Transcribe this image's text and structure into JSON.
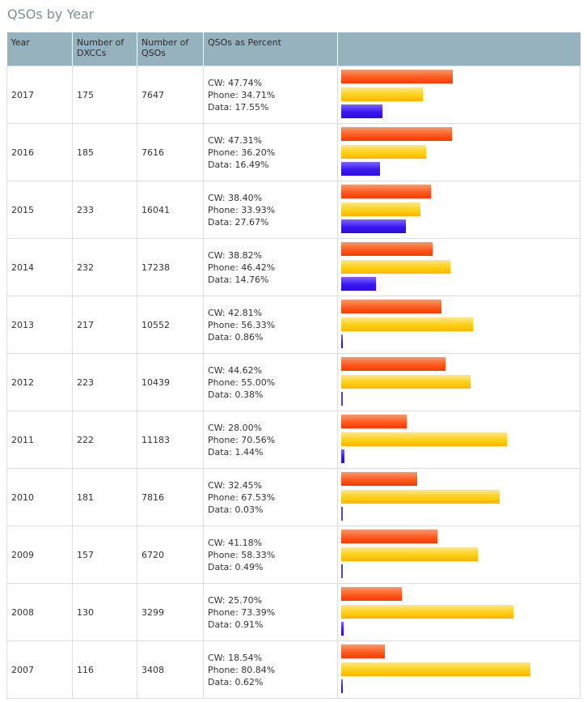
{
  "page": {
    "title": "QSOs by Year",
    "columns": [
      "Year",
      "Number of DXCCs",
      "Number of QSOs",
      "QSOs as Percent"
    ],
    "colors": {
      "cw": "#ff5a1e",
      "phone": "#ffd21a",
      "data": "#3a18f2",
      "header_bg": "#97b2bf"
    }
  },
  "chart_data": {
    "type": "table",
    "title": "QSOs by Year",
    "columns": [
      "Year",
      "Number of DXCCs",
      "Number of QSOs",
      "QSOs as Percent"
    ],
    "bar_series": [
      "CW",
      "Phone",
      "Data"
    ],
    "bar_max_percent": 100,
    "rows": [
      {
        "year": "2017",
        "dxccs": "175",
        "qsos": "7647",
        "cw_label": "CW: 47.74%",
        "phone_label": "Phone: 34.71%",
        "data_label": "Data: 17.55%",
        "cw": 47.74,
        "phone": 34.71,
        "data": 17.55
      },
      {
        "year": "2016",
        "dxccs": "185",
        "qsos": "7616",
        "cw_label": "CW: 47.31%",
        "phone_label": "Phone: 36.20%",
        "data_label": "Data: 16.49%",
        "cw": 47.31,
        "phone": 36.2,
        "data": 16.49
      },
      {
        "year": "2015",
        "dxccs": "233",
        "qsos": "16041",
        "cw_label": "CW: 38.40%",
        "phone_label": "Phone: 33.93%",
        "data_label": "Data: 27.67%",
        "cw": 38.4,
        "phone": 33.93,
        "data": 27.67
      },
      {
        "year": "2014",
        "dxccs": "232",
        "qsos": "17238",
        "cw_label": "CW: 38.82%",
        "phone_label": "Phone: 46.42%",
        "data_label": "Data: 14.76%",
        "cw": 38.82,
        "phone": 46.42,
        "data": 14.76
      },
      {
        "year": "2013",
        "dxccs": "217",
        "qsos": "10552",
        "cw_label": "CW: 42.81%",
        "phone_label": "Phone: 56.33%",
        "data_label": "Data: 0.86%",
        "cw": 42.81,
        "phone": 56.33,
        "data": 0.86
      },
      {
        "year": "2012",
        "dxccs": "223",
        "qsos": "10439",
        "cw_label": "CW: 44.62%",
        "phone_label": "Phone: 55.00%",
        "data_label": "Data: 0.38%",
        "cw": 44.62,
        "phone": 55.0,
        "data": 0.38
      },
      {
        "year": "2011",
        "dxccs": "222",
        "qsos": "11183",
        "cw_label": "CW: 28.00%",
        "phone_label": "Phone: 70.56%",
        "data_label": "Data: 1.44%",
        "cw": 28.0,
        "phone": 70.56,
        "data": 1.44
      },
      {
        "year": "2010",
        "dxccs": "181",
        "qsos": "7816",
        "cw_label": "CW: 32.45%",
        "phone_label": "Phone: 67.53%",
        "data_label": "Data: 0.03%",
        "cw": 32.45,
        "phone": 67.53,
        "data": 0.03
      },
      {
        "year": "2009",
        "dxccs": "157",
        "qsos": "6720",
        "cw_label": "CW: 41.18%",
        "phone_label": "Phone: 58.33%",
        "data_label": "Data: 0.49%",
        "cw": 41.18,
        "phone": 58.33,
        "data": 0.49
      },
      {
        "year": "2008",
        "dxccs": "130",
        "qsos": "3299",
        "cw_label": "CW: 25.70%",
        "phone_label": "Phone: 73.39%",
        "data_label": "Data: 0.91%",
        "cw": 25.7,
        "phone": 73.39,
        "data": 0.91
      },
      {
        "year": "2007",
        "dxccs": "116",
        "qsos": "3408",
        "cw_label": "CW: 18.54%",
        "phone_label": "Phone: 80.84%",
        "data_label": "Data: 0.62%",
        "cw": 18.54,
        "phone": 80.84,
        "data": 0.62
      }
    ]
  }
}
